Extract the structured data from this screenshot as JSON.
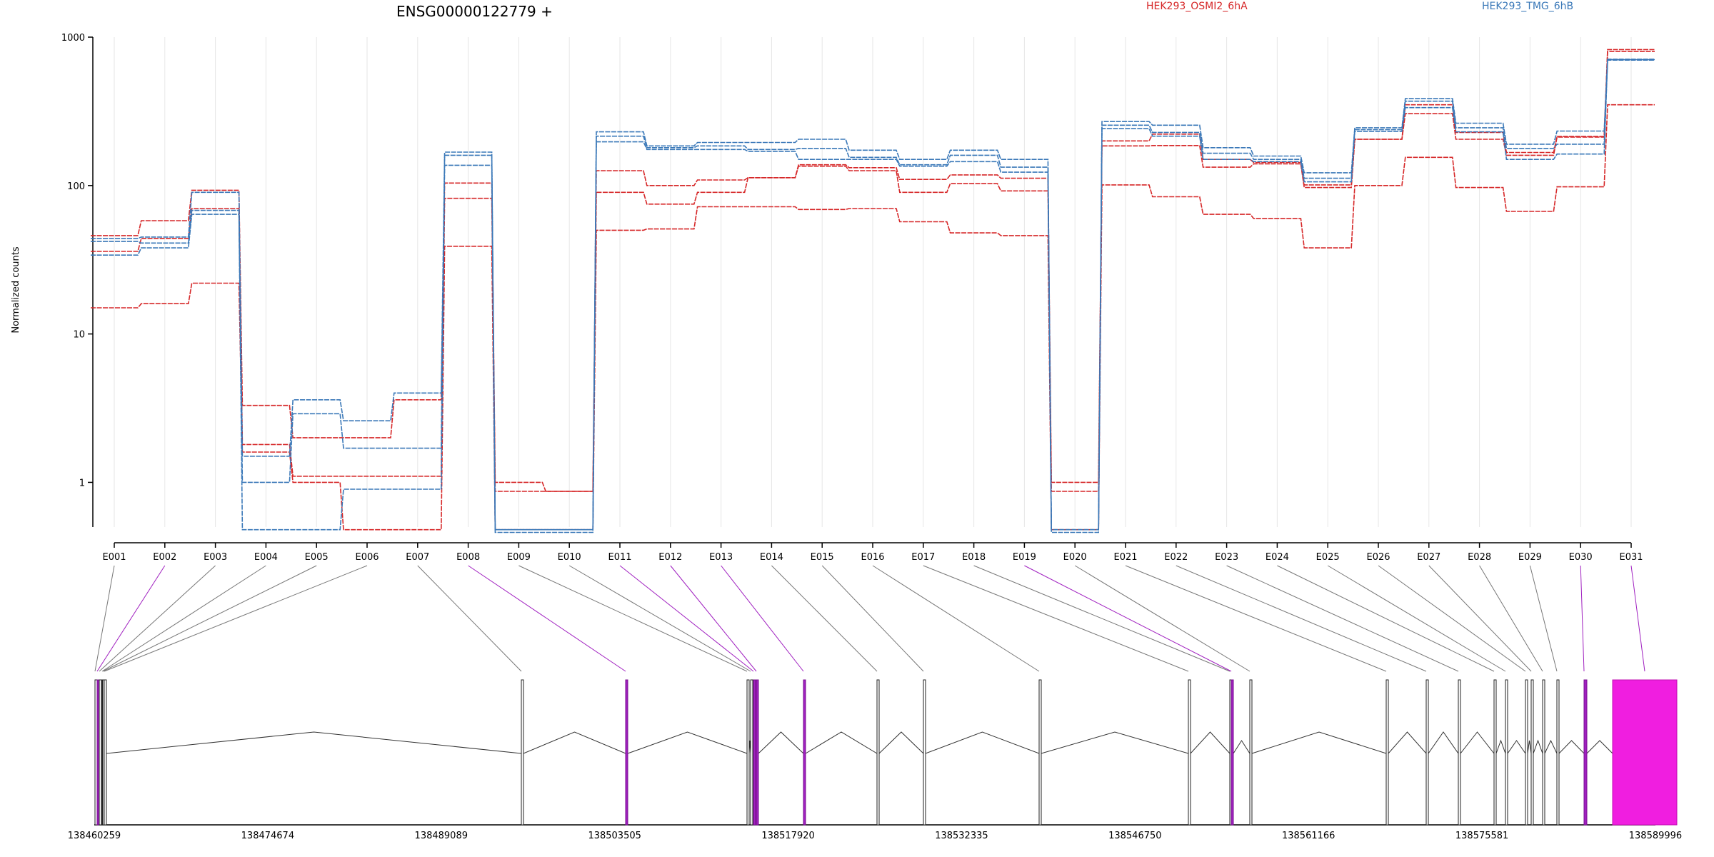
{
  "chart_data": {
    "type": "line",
    "title": "ENSG00000122779 +",
    "ylabel": "Normalized counts",
    "yscale": "log",
    "ylim": [
      0.5,
      1000
    ],
    "yticks": [
      "1",
      "10",
      "100",
      "1000"
    ],
    "grid": "vertical",
    "legend": [
      {
        "name": "HEK293_OSMI2_6hA",
        "color": "#d62728"
      },
      {
        "name": "HEK293_TMG_6hB",
        "color": "#3a78b8"
      }
    ],
    "categories": [
      "E001",
      "E002",
      "E003",
      "E004",
      "E005",
      "E006",
      "E007",
      "E008",
      "E009",
      "E010",
      "E011",
      "E012",
      "E013",
      "E014",
      "E015",
      "E016",
      "E017",
      "E018",
      "E019",
      "E020",
      "E021",
      "E022",
      "E023",
      "E024",
      "E025",
      "E026",
      "E027",
      "E028",
      "E029",
      "E030",
      "E031"
    ],
    "series": [
      {
        "group": "HEK293_OSMI2_6hA",
        "values": [
          46,
          58,
          93,
          3.3,
          2.0,
          2.0,
          3.6,
          104,
          1.0,
          0.87,
          126,
          100,
          109,
          113,
          138,
          132,
          110,
          118,
          112,
          1.0,
          200,
          222,
          150,
          143,
          101,
          205,
          305,
          205,
          160,
          212,
          800
        ]
      },
      {
        "group": "HEK293_OSMI2_6hA",
        "values": [
          36,
          44,
          70,
          1.8,
          1.1,
          1.1,
          1.1,
          82,
          0.87,
          0.87,
          90,
          75,
          90,
          113,
          135,
          126,
          90,
          103,
          92,
          0.87,
          185,
          186,
          133,
          140,
          97,
          205,
          350,
          228,
          167,
          214,
          825
        ]
      },
      {
        "group": "HEK293_OSMI2_6hA",
        "values": [
          15,
          16,
          22,
          1.6,
          1.0,
          0.48,
          0.48,
          39,
          0.48,
          0.48,
          50,
          51,
          72,
          72,
          69,
          70,
          57,
          48,
          46,
          0.48,
          101,
          84,
          64,
          60,
          38,
          100,
          155,
          97,
          67,
          98,
          350
        ]
      },
      {
        "group": "HEK293_TMG_6hB",
        "values": [
          44,
          45,
          90,
          1.5,
          3.6,
          2.6,
          4.0,
          168,
          0.48,
          0.48,
          230,
          185,
          195,
          195,
          205,
          173,
          150,
          173,
          150,
          0.48,
          270,
          255,
          180,
          158,
          122,
          245,
          385,
          263,
          190,
          233,
          710
        ]
      },
      {
        "group": "HEK293_TMG_6hB",
        "values": [
          42,
          41,
          68,
          1.0,
          2.9,
          1.7,
          1.7,
          160,
          0.48,
          0.48,
          215,
          180,
          185,
          175,
          178,
          155,
          138,
          160,
          133,
          0.48,
          255,
          228,
          165,
          150,
          112,
          238,
          370,
          245,
          178,
          190,
          700
        ]
      },
      {
        "group": "HEK293_TMG_6hB",
        "values": [
          34,
          38,
          64,
          0.48,
          0.48,
          0.9,
          0.9,
          137,
          0.46,
          0.46,
          197,
          175,
          175,
          170,
          150,
          150,
          135,
          145,
          123,
          0.46,
          242,
          215,
          150,
          145,
          106,
          232,
          335,
          230,
          150,
          163,
          705
        ]
      }
    ],
    "gene_model": {
      "coordinate_ticks": [
        "138460259",
        "138474674",
        "138489089",
        "138503505",
        "138517920",
        "138532335",
        "138546750",
        "138561166",
        "138575581",
        "138589996"
      ]
    }
  }
}
